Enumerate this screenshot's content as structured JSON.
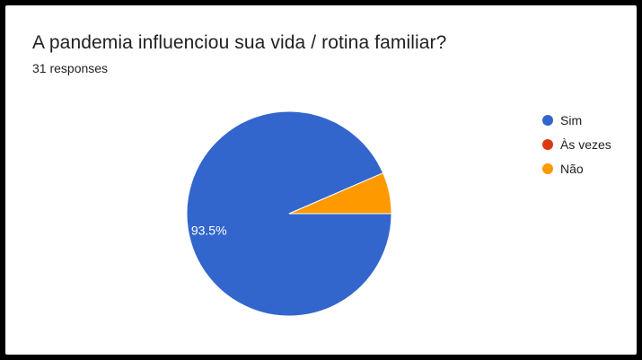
{
  "title": "A pandemia influenciou sua vida / rotina familiar?",
  "subtitle": "31 responses",
  "chart_data": {
    "type": "pie",
    "title": "A pandemia influenciou sua vida / rotina familiar?",
    "categories": [
      "Sim",
      "Às vezes",
      "Não"
    ],
    "values": [
      93.5,
      0,
      6.5
    ],
    "colors": [
      "#3366cc",
      "#dc3912",
      "#ff9900"
    ],
    "data_labels": [
      "93.5%",
      "",
      ""
    ],
    "legend_position": "right"
  }
}
